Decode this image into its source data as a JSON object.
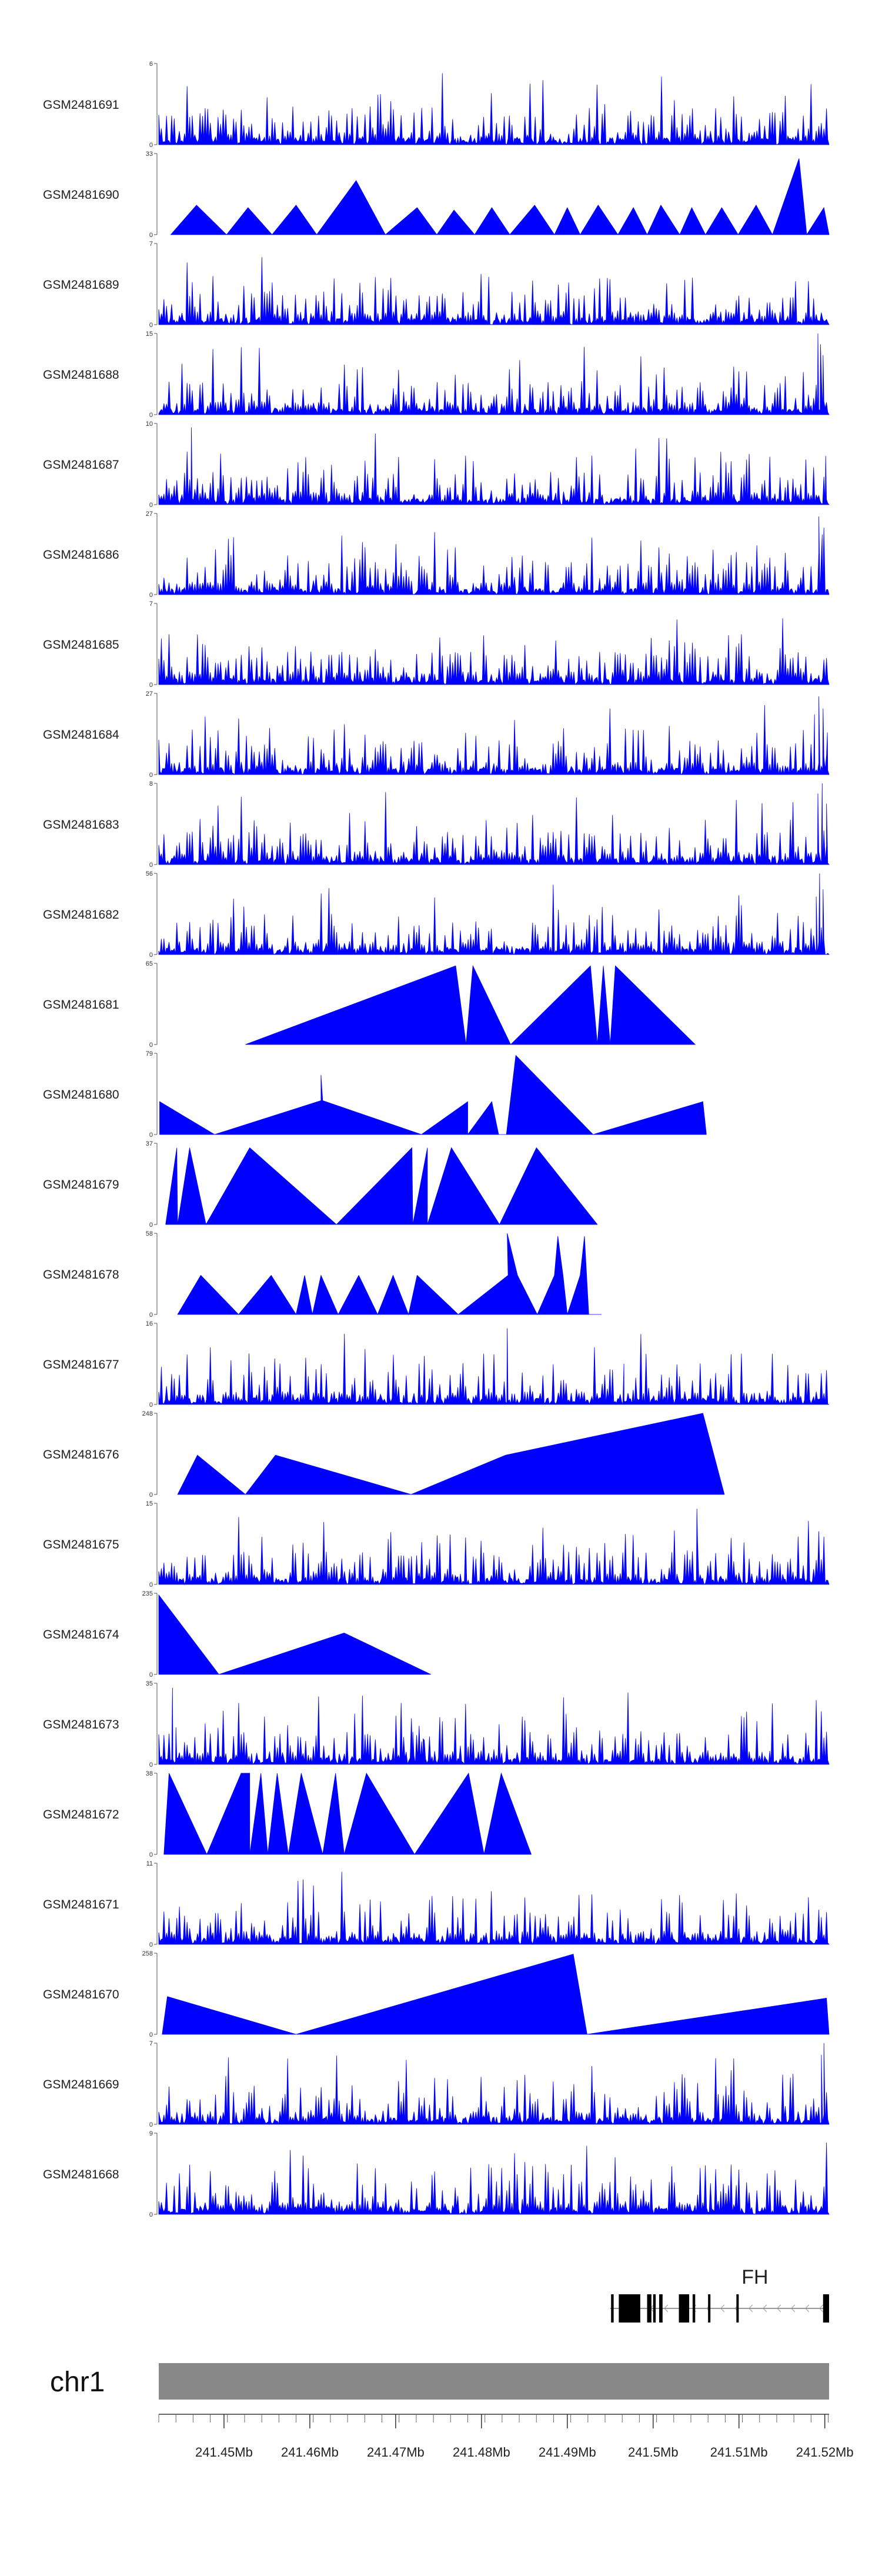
{
  "chart_data": {
    "type": "area",
    "title": "",
    "colors": {
      "coverage": "#0000ff",
      "gene": "#000000",
      "chromosome": "#888888",
      "axis": "#333333"
    },
    "tracks": [
      {
        "name": "GSM2481691",
        "ymax": 6,
        "ymax_label": "6",
        "ymin_label": "0",
        "style": "dense",
        "seed": 11,
        "peaks": []
      },
      {
        "name": "GSM2481690",
        "ymax": 33,
        "ymax_label": "33",
        "ymin_label": "0",
        "style": "sparse",
        "points": [
          [
            241.4438,
            0
          ],
          [
            241.4468,
            12
          ],
          [
            241.4503,
            0
          ],
          [
            241.4528,
            11
          ],
          [
            241.4556,
            0
          ],
          [
            241.4584,
            12
          ],
          [
            241.4608,
            0
          ],
          [
            241.4654,
            22
          ],
          [
            241.4688,
            0
          ],
          [
            241.4725,
            11
          ],
          [
            241.4748,
            0
          ],
          [
            241.4768,
            10
          ],
          [
            241.4792,
            0
          ],
          [
            241.4812,
            11
          ],
          [
            241.4833,
            0
          ],
          [
            241.4862,
            12
          ],
          [
            241.4885,
            0
          ],
          [
            241.49,
            11
          ],
          [
            241.4915,
            0
          ],
          [
            241.4936,
            12
          ],
          [
            241.4959,
            0
          ],
          [
            241.4977,
            11
          ],
          [
            241.4993,
            0
          ],
          [
            241.5009,
            12
          ],
          [
            241.5031,
            0
          ],
          [
            241.5045,
            11
          ],
          [
            241.5061,
            0
          ],
          [
            241.508,
            11
          ],
          [
            241.5099,
            0
          ],
          [
            241.512,
            12
          ],
          [
            241.5139,
            0
          ],
          [
            241.517,
            31
          ],
          [
            241.5179,
            0
          ],
          [
            241.5199,
            11
          ],
          [
            241.5205,
            0
          ]
        ]
      },
      {
        "name": "GSM2481689",
        "ymax": 7,
        "ymax_label": "7",
        "ymin_label": "0",
        "style": "dense",
        "seed": 23,
        "peaks": []
      },
      {
        "name": "GSM2481688",
        "ymax": 15,
        "ymax_label": "15",
        "ymin_label": "0",
        "style": "dense",
        "seed": 37,
        "peaks": [
          [
            241.5192,
            15
          ],
          [
            241.5195,
            13
          ],
          [
            241.5198,
            11
          ]
        ]
      },
      {
        "name": "GSM2481687",
        "ymax": 10,
        "ymax_label": "10",
        "ymin_label": "0",
        "style": "dense",
        "seed": 41,
        "peaks": [
          [
            241.4462,
            9.5
          ],
          [
            241.5201,
            6
          ]
        ]
      },
      {
        "name": "GSM2481686",
        "ymax": 27,
        "ymax_label": "27",
        "ymin_label": "0",
        "style": "dense",
        "seed": 53,
        "peaks": [
          [
            241.5193,
            26
          ],
          [
            241.5197,
            20
          ]
        ]
      },
      {
        "name": "GSM2481685",
        "ymax": 7,
        "ymax_label": "7",
        "ymin_label": "0",
        "style": "dense",
        "seed": 67,
        "peaks": []
      },
      {
        "name": "GSM2481684",
        "ymax": 27,
        "ymax_label": "27",
        "ymin_label": "0",
        "style": "dense",
        "seed": 71,
        "peaks": [
          [
            241.5188,
            20
          ],
          [
            241.5193,
            26
          ],
          [
            241.5198,
            22
          ],
          [
            241.5203,
            14
          ]
        ]
      },
      {
        "name": "GSM2481683",
        "ymax": 8,
        "ymax_label": "8",
        "ymin_label": "0",
        "style": "dense",
        "seed": 83,
        "peaks": [
          [
            241.5192,
            7
          ],
          [
            241.5197,
            8
          ],
          [
            241.5202,
            6
          ]
        ]
      },
      {
        "name": "GSM2481682",
        "ymax": 56,
        "ymax_label": "56",
        "ymin_label": "0",
        "style": "dense",
        "seed": 97,
        "peaks": [
          [
            241.519,
            40
          ],
          [
            241.5194,
            56
          ],
          [
            241.5198,
            45
          ]
        ]
      },
      {
        "name": "GSM2481681",
        "ymax": 65,
        "ymax_label": "65",
        "ymin_label": "0",
        "style": "sparse",
        "points": [
          [
            241.4525,
            0
          ],
          [
            241.477,
            63
          ],
          [
            241.4782,
            0
          ],
          [
            241.479,
            63
          ],
          [
            241.4834,
            0
          ],
          [
            241.4927,
            63
          ],
          [
            241.4935,
            0
          ],
          [
            241.4942,
            63
          ],
          [
            241.495,
            0
          ],
          [
            241.4956,
            63
          ],
          [
            241.5049,
            0
          ]
        ]
      },
      {
        "name": "GSM2481680",
        "ymax": 79,
        "ymax_label": "79",
        "ymin_label": "0",
        "style": "sparse",
        "points": [
          [
            241.4425,
            0
          ],
          [
            241.4425,
            32
          ],
          [
            241.4489,
            0
          ],
          [
            241.4613,
            33
          ],
          [
            241.4613,
            58
          ],
          [
            241.4615,
            33
          ],
          [
            241.473,
            0
          ],
          [
            241.4784,
            32
          ],
          [
            241.4784,
            0
          ],
          [
            241.4812,
            32
          ],
          [
            241.482,
            0
          ],
          [
            241.4829,
            0
          ],
          [
            241.484,
            77
          ],
          [
            241.493,
            0
          ],
          [
            241.5058,
            32
          ],
          [
            241.5062,
            0
          ]
        ]
      },
      {
        "name": "GSM2481679",
        "ymax": 37,
        "ymax_label": "37",
        "ymin_label": "0",
        "style": "sparse",
        "points": [
          [
            241.4432,
            0
          ],
          [
            241.4445,
            35
          ],
          [
            241.4446,
            0
          ],
          [
            241.446,
            35
          ],
          [
            241.4479,
            0
          ],
          [
            241.453,
            35
          ],
          [
            241.4631,
            0
          ],
          [
            241.4719,
            35
          ],
          [
            241.472,
            0
          ],
          [
            241.4737,
            35
          ],
          [
            241.4737,
            0
          ],
          [
            241.4765,
            35
          ],
          [
            241.4821,
            0
          ],
          [
            241.4864,
            35
          ],
          [
            241.4935,
            0
          ]
        ]
      },
      {
        "name": "GSM2481678",
        "ymax": 58,
        "ymax_label": "58",
        "ymin_label": "0",
        "style": "sparse",
        "points": [
          [
            241.4446,
            0
          ],
          [
            241.4473,
            28
          ],
          [
            241.4517,
            0
          ],
          [
            241.4555,
            28
          ],
          [
            241.4584,
            0
          ],
          [
            241.4594,
            28
          ],
          [
            241.4603,
            0
          ],
          [
            241.4613,
            28
          ],
          [
            241.4633,
            0
          ],
          [
            241.4657,
            28
          ],
          [
            241.4679,
            0
          ],
          [
            241.4697,
            28
          ],
          [
            241.4715,
            0
          ],
          [
            241.4725,
            28
          ],
          [
            241.4773,
            0
          ],
          [
            241.4831,
            28
          ],
          [
            241.483,
            58
          ],
          [
            241.4842,
            28
          ],
          [
            241.4865,
            0
          ],
          [
            241.4885,
            28
          ],
          [
            241.4889,
            56
          ],
          [
            241.4895,
            28
          ],
          [
            241.49,
            0
          ],
          [
            241.4915,
            28
          ],
          [
            241.492,
            56
          ],
          [
            241.4925,
            0
          ],
          [
            241.494,
            0
          ]
        ]
      },
      {
        "name": "GSM2481677",
        "ymax": 16,
        "ymax_label": "16",
        "ymin_label": "0",
        "style": "dense",
        "seed": 101,
        "peaks": [
          [
            241.4439,
            6
          ],
          [
            241.483,
            15
          ],
          [
            241.4966,
            8
          ]
        ]
      },
      {
        "name": "GSM2481676",
        "ymax": 248,
        "ymax_label": "248",
        "ymin_label": "0",
        "style": "sparse",
        "points": [
          [
            241.4446,
            0
          ],
          [
            241.4469,
            120
          ],
          [
            241.4525,
            0
          ],
          [
            241.456,
            120
          ],
          [
            241.4718,
            0
          ],
          [
            241.4828,
            120
          ],
          [
            241.5058,
            250
          ],
          [
            241.5083,
            0
          ]
        ]
      },
      {
        "name": "GSM2481675",
        "ymax": 15,
        "ymax_label": "15",
        "ymin_label": "0",
        "style": "dense",
        "seed": 113,
        "peaks": [
          [
            241.5051,
            14
          ]
        ]
      },
      {
        "name": "GSM2481674",
        "ymax": 235,
        "ymax_label": "235",
        "ymin_label": "0",
        "style": "sparse",
        "points": [
          [
            241.4424,
            0
          ],
          [
            241.4424,
            230
          ],
          [
            241.4494,
            0
          ],
          [
            241.464,
            120
          ],
          [
            241.4741,
            0
          ]
        ]
      },
      {
        "name": "GSM2481673",
        "ymax": 35,
        "ymax_label": "35",
        "ymin_label": "0",
        "style": "dense",
        "seed": 127,
        "peaks": [
          [
            241.444,
            33
          ],
          [
            241.4444,
            16
          ],
          [
            241.472,
            14
          ],
          [
            241.4732,
            11
          ]
        ]
      },
      {
        "name": "GSM2481672",
        "ymax": 38,
        "ymax_label": "38",
        "ymin_label": "0",
        "style": "sparse",
        "points": [
          [
            241.443,
            0
          ],
          [
            241.4436,
            38
          ],
          [
            241.448,
            0
          ],
          [
            241.452,
            38
          ],
          [
            241.453,
            38
          ],
          [
            241.453,
            0
          ],
          [
            241.4543,
            38
          ],
          [
            241.4551,
            0
          ],
          [
            241.4562,
            38
          ],
          [
            241.4575,
            0
          ],
          [
            241.459,
            38
          ],
          [
            241.4615,
            0
          ],
          [
            241.463,
            38
          ],
          [
            241.464,
            0
          ],
          [
            241.4666,
            38
          ],
          [
            241.4722,
            0
          ],
          [
            241.4785,
            38
          ],
          [
            241.4803,
            0
          ],
          [
            241.4823,
            38
          ],
          [
            241.4858,
            0
          ]
        ]
      },
      {
        "name": "GSM2481671",
        "ymax": 11,
        "ymax_label": "11",
        "ymin_label": "0",
        "style": "dense",
        "seed": 139,
        "peaks": []
      },
      {
        "name": "GSM2481670",
        "ymax": 258,
        "ymax_label": "258",
        "ymin_label": "0",
        "style": "sparse",
        "points": [
          [
            241.4428,
            0
          ],
          [
            241.4434,
            120
          ],
          [
            241.4584,
            0
          ],
          [
            241.4907,
            255
          ],
          [
            241.4923,
            0
          ],
          [
            241.5202,
            115
          ],
          [
            241.5205,
            0
          ],
          [
            241.5185,
            0
          ]
        ]
      },
      {
        "name": "GSM2481669",
        "ymax": 7,
        "ymax_label": "7",
        "ymin_label": "0",
        "style": "dense",
        "seed": 151,
        "peaks": [
          [
            241.5196,
            6
          ],
          [
            241.5199,
            7
          ]
        ]
      },
      {
        "name": "GSM2481668",
        "ymax": 9,
        "ymax_label": "9",
        "ymin_label": "0",
        "style": "dense",
        "seed": 163,
        "peaks": []
      }
    ],
    "gene": {
      "name": "FH",
      "strand": "-",
      "start": 241.495,
      "end": 241.5205,
      "exons": [
        [
          241.4951,
          241.4954
        ],
        [
          241.496,
          241.4985
        ],
        [
          241.4993,
          241.4998
        ],
        [
          241.5,
          241.5003
        ],
        [
          241.5007,
          241.5011
        ],
        [
          241.503,
          241.5042
        ],
        [
          241.5046,
          241.5049
        ],
        [
          241.5064,
          241.5066
        ],
        [
          241.5097,
          241.5099
        ],
        [
          241.5198,
          241.5205
        ]
      ]
    },
    "chromosome": "chr1",
    "x_axis": {
      "min": 241.4424,
      "max": 241.5205,
      "ticks": [
        241.45,
        241.46,
        241.47,
        241.48,
        241.49,
        241.5,
        241.51,
        241.52
      ],
      "tick_labels": [
        "241.45Mb",
        "241.46Mb",
        "241.47Mb",
        "241.48Mb",
        "241.49Mb",
        "241.5Mb",
        "241.51Mb",
        "241.52Mb"
      ],
      "minor_step": 0.002
    }
  }
}
